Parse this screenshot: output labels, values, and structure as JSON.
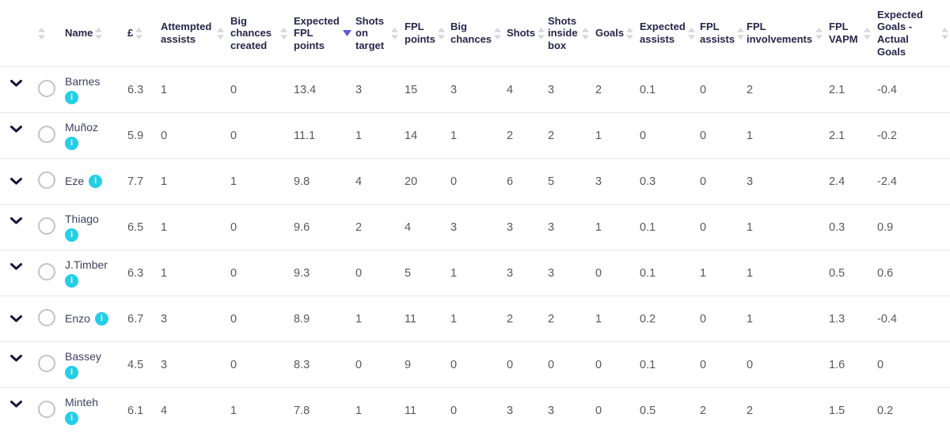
{
  "table": {
    "sort": {
      "column": "Expected FPL points",
      "direction": "desc"
    },
    "columns": [
      {
        "key": "expand",
        "label": "",
        "sortable": false
      },
      {
        "key": "select",
        "label": "",
        "sortable": true
      },
      {
        "key": "name",
        "label": "Name",
        "sortable": true
      },
      {
        "key": "price",
        "label": "£",
        "sortable": true
      },
      {
        "key": "attempted_assists",
        "label": "Attempted assists",
        "sortable": true
      },
      {
        "key": "big_chances_created",
        "label": "Big chances created",
        "sortable": true
      },
      {
        "key": "expected_fpl_points",
        "label": "Expected FPL points",
        "sortable": true,
        "sorted": "desc"
      },
      {
        "key": "shots_on_target",
        "label": "Shots on target",
        "sortable": true
      },
      {
        "key": "fpl_points",
        "label": "FPL points",
        "sortable": true
      },
      {
        "key": "big_chances",
        "label": "Big chances",
        "sortable": true
      },
      {
        "key": "shots",
        "label": "Shots",
        "sortable": true
      },
      {
        "key": "shots_inside_box",
        "label": "Shots inside box",
        "sortable": true
      },
      {
        "key": "goals",
        "label": "Goals",
        "sortable": true
      },
      {
        "key": "expected_assists",
        "label": "Expected assists",
        "sortable": true
      },
      {
        "key": "fpl_assists",
        "label": "FPL assists",
        "sortable": true
      },
      {
        "key": "fpl_involvements",
        "label": "FPL involvements",
        "sortable": true
      },
      {
        "key": "fpl_vapm",
        "label": "FPL VAPM",
        "sortable": true
      },
      {
        "key": "xg_minus_goals",
        "label": "Expected Goals - Actual Goals",
        "sortable": true
      }
    ],
    "players": [
      {
        "name": "Barnes",
        "values": [
          "6.3",
          "1",
          "0",
          "13.4",
          "3",
          "15",
          "3",
          "4",
          "3",
          "2",
          "0.1",
          "0",
          "2",
          "2.1",
          "-0.4"
        ]
      },
      {
        "name": "Muñoz",
        "values": [
          "5.9",
          "0",
          "0",
          "11.1",
          "1",
          "14",
          "1",
          "2",
          "2",
          "1",
          "0",
          "0",
          "1",
          "2.1",
          "-0.2"
        ]
      },
      {
        "name": "Eze",
        "values": [
          "7.7",
          "1",
          "1",
          "9.8",
          "4",
          "20",
          "0",
          "6",
          "5",
          "3",
          "0.3",
          "0",
          "3",
          "2.4",
          "-2.4"
        ]
      },
      {
        "name": "Thiago",
        "values": [
          "6.5",
          "1",
          "0",
          "9.6",
          "2",
          "4",
          "3",
          "3",
          "3",
          "1",
          "0.1",
          "0",
          "1",
          "0.3",
          "0.9"
        ]
      },
      {
        "name": "J.Timber",
        "values": [
          "6.3",
          "1",
          "0",
          "9.3",
          "0",
          "5",
          "1",
          "3",
          "3",
          "0",
          "0.1",
          "1",
          "1",
          "0.5",
          "0.6"
        ]
      },
      {
        "name": "Enzo",
        "values": [
          "6.7",
          "3",
          "0",
          "8.9",
          "1",
          "11",
          "1",
          "2",
          "2",
          "1",
          "0.2",
          "0",
          "1",
          "1.3",
          "-0.4"
        ]
      },
      {
        "name": "Bassey",
        "values": [
          "4.5",
          "3",
          "0",
          "8.3",
          "0",
          "9",
          "0",
          "0",
          "0",
          "0",
          "0.1",
          "0",
          "0",
          "1.6",
          "0"
        ]
      },
      {
        "name": "Minteh",
        "values": [
          "6.1",
          "4",
          "1",
          "7.8",
          "1",
          "11",
          "0",
          "3",
          "3",
          "0",
          "0.5",
          "2",
          "2",
          "1.5",
          "0.2"
        ]
      }
    ]
  },
  "icons": {
    "info": "i",
    "expand": "chevron-down",
    "sort": "sort-arrows",
    "sort_active": "sort-desc-triangle"
  },
  "colors": {
    "header_text": "#26264b",
    "value_text": "#58585c",
    "name_text": "#3f3f63",
    "info_icon_bg": "#24cfe6",
    "sort_icon": "#d7d7dc",
    "sort_active": "#5c5cd6",
    "row_divider": "#e8e8eb",
    "chevron": "#15153c",
    "radio_border": "#c3c3c8"
  }
}
